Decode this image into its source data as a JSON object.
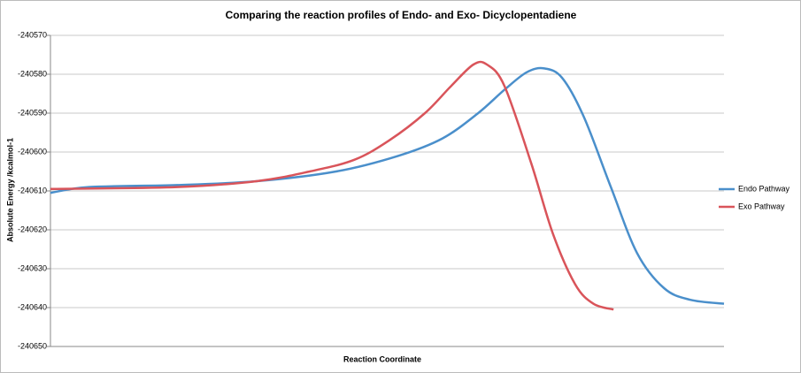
{
  "chart_data": {
    "type": "line",
    "title": "Comparing the reaction profiles of Endo- and Exo- Dicyclopentadiene",
    "x_label": "Reaction Coordinate",
    "y_label": "Absolute Energy /kcalmol-1",
    "series": [
      {
        "name": "Endo Pathway",
        "color": "#4a8fcb",
        "x": [
          0,
          5.7,
          18.8,
          30.6,
          42.4,
          51.6,
          58.2,
          63.5,
          67.4,
          70.7,
          73.3,
          76,
          79.2,
          83.2,
          87.1,
          91.1,
          95,
          100
        ],
        "values": [
          -240610.5,
          -240609,
          -240608.5,
          -240607.5,
          -240605,
          -240601,
          -240596.5,
          -240590,
          -240584,
          -240579.5,
          -240578.5,
          -240581,
          -240591,
          -240609,
          -240626,
          -240635,
          -240638,
          -240639
        ]
      },
      {
        "name": "Exo Pathway",
        "color": "#d9545a",
        "x": [
          0,
          18.8,
          30.6,
          38.5,
          45.1,
          50.3,
          55.6,
          59.5,
          62.8,
          64.8,
          67.4,
          71.4,
          74.6,
          77.9,
          80.6,
          83.6
        ],
        "values": [
          -240609.5,
          -240609,
          -240607.5,
          -240605,
          -240602,
          -240597,
          -240590,
          -240583,
          -240577.5,
          -240577.5,
          -240583,
          -240603,
          -240621,
          -240634,
          -240639,
          -240640.5
        ]
      }
    ],
    "xlim": [
      0,
      100
    ],
    "ylim": [
      -240650,
      -240570
    ],
    "yticks": [
      -240570,
      -240580,
      -240590,
      -240600,
      -240610,
      -240620,
      -240630,
      -240640,
      -240650
    ],
    "grid": true,
    "legend": "right"
  }
}
